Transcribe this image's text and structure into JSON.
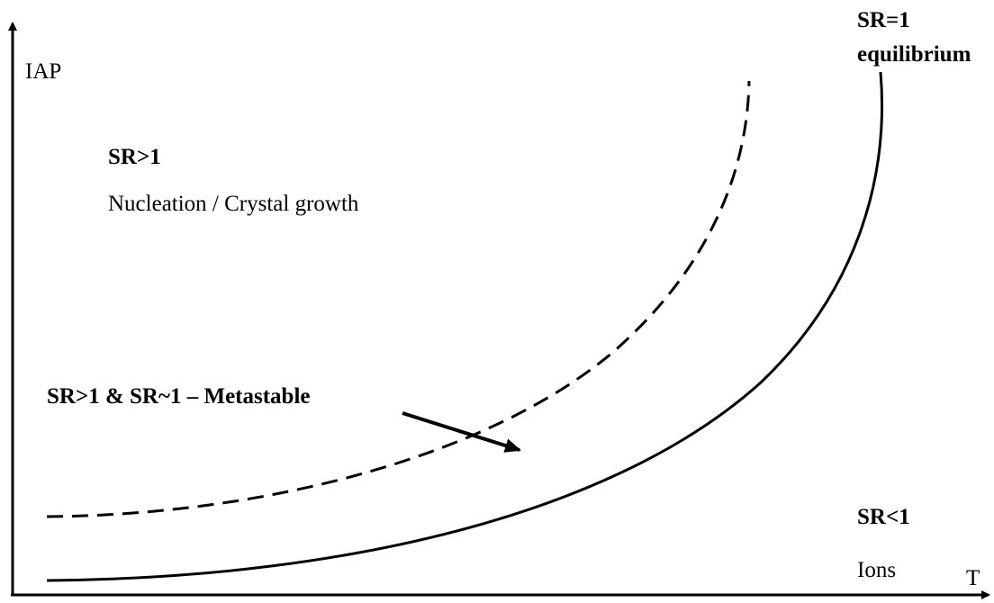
{
  "axes": {
    "y_label": "IAP",
    "x_label": "T"
  },
  "regions": {
    "equilibrium": {
      "title": "SR=1",
      "subtitle": "equilibrium"
    },
    "supersaturated": {
      "title": "SR>1",
      "description": "Nucleation / Crystal growth"
    },
    "metastable": {
      "title": "SR>1 & SR~1 – Metastable"
    },
    "undersaturated": {
      "title": "SR<1",
      "description": "Ions"
    }
  }
}
